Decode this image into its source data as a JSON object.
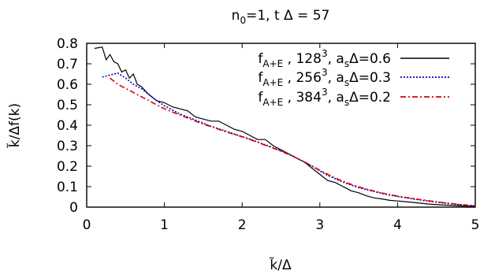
{
  "chart_data": {
    "type": "line",
    "title": "n0=1, t Δ = 57",
    "xlabel": "k̃/Δ",
    "ylabel": "k̃/Δf(k)",
    "xlim": [
      0,
      5
    ],
    "ylim": [
      0,
      0.8
    ],
    "xticks": [
      0,
      1,
      2,
      3,
      4,
      5
    ],
    "yticks": [
      0,
      0.1,
      0.2,
      0.3,
      0.4,
      0.5,
      0.6,
      0.7,
      0.8
    ],
    "xtick_labels": [
      "0",
      "1",
      "2",
      "3",
      "4",
      "5"
    ],
    "ytick_labels": [
      "0",
      "0.1",
      "0.2",
      "0.3",
      "0.4",
      "0.5",
      "0.6",
      "0.7",
      "0.8"
    ],
    "grid": false,
    "legend_position": "top-right",
    "series": [
      {
        "name": "f_A+E , 128^3, a_sΔ=0.6",
        "color": "#000000",
        "dash": "solid",
        "x": [
          0.1,
          0.2,
          0.25,
          0.3,
          0.35,
          0.4,
          0.45,
          0.5,
          0.55,
          0.6,
          0.65,
          0.7,
          0.75,
          0.8,
          0.9,
          1.0,
          1.1,
          1.2,
          1.3,
          1.4,
          1.5,
          1.6,
          1.7,
          1.8,
          1.9,
          2.0,
          2.1,
          2.2,
          2.3,
          2.4,
          2.5,
          2.6,
          2.7,
          2.8,
          2.9,
          3.0,
          3.1,
          3.2,
          3.3,
          3.4,
          3.5,
          3.6,
          3.7,
          3.8,
          3.9,
          4.0,
          4.2,
          4.4,
          4.6,
          4.8,
          5.0
        ],
        "y": [
          0.775,
          0.782,
          0.72,
          0.745,
          0.71,
          0.7,
          0.66,
          0.67,
          0.63,
          0.65,
          0.6,
          0.59,
          0.57,
          0.55,
          0.52,
          0.51,
          0.49,
          0.48,
          0.47,
          0.44,
          0.43,
          0.42,
          0.42,
          0.4,
          0.38,
          0.37,
          0.35,
          0.33,
          0.33,
          0.3,
          0.28,
          0.26,
          0.24,
          0.22,
          0.19,
          0.16,
          0.13,
          0.12,
          0.1,
          0.08,
          0.07,
          0.055,
          0.045,
          0.04,
          0.033,
          0.03,
          0.023,
          0.015,
          0.01,
          0.006,
          0.003
        ]
      },
      {
        "name": "f_A+E , 256^3, a_sΔ=0.3",
        "color": "#0000cc",
        "dash": "dotted",
        "x": [
          0.2,
          0.3,
          0.4,
          0.5,
          0.6,
          0.7,
          0.8,
          0.9,
          1.0,
          1.1,
          1.2,
          1.3,
          1.4,
          1.5,
          1.6,
          1.7,
          1.8,
          1.9,
          2.0,
          2.1,
          2.2,
          2.3,
          2.4,
          2.5,
          2.6,
          2.7,
          2.8,
          2.9,
          3.0,
          3.1,
          3.2,
          3.3,
          3.4,
          3.5,
          3.6,
          3.7,
          3.8,
          3.9,
          4.0,
          4.2,
          4.4,
          4.6,
          4.8,
          5.0
        ],
        "y": [
          0.635,
          0.645,
          0.655,
          0.63,
          0.6,
          0.58,
          0.55,
          0.52,
          0.495,
          0.475,
          0.455,
          0.44,
          0.425,
          0.41,
          0.395,
          0.382,
          0.37,
          0.357,
          0.345,
          0.332,
          0.318,
          0.304,
          0.29,
          0.275,
          0.258,
          0.24,
          0.22,
          0.2,
          0.177,
          0.155,
          0.138,
          0.122,
          0.108,
          0.095,
          0.085,
          0.076,
          0.067,
          0.059,
          0.052,
          0.04,
          0.029,
          0.02,
          0.012,
          0.006
        ]
      },
      {
        "name": "f_A+E , 384^3, a_sΔ=0.2",
        "color": "#dd0000",
        "dash": "dashdot",
        "x": [
          0.3,
          0.4,
          0.5,
          0.6,
          0.7,
          0.8,
          0.9,
          1.0,
          1.1,
          1.2,
          1.3,
          1.4,
          1.5,
          1.6,
          1.7,
          1.8,
          1.9,
          2.0,
          2.1,
          2.2,
          2.3,
          2.4,
          2.5,
          2.6,
          2.7,
          2.8,
          2.9,
          3.0,
          3.1,
          3.2,
          3.3,
          3.4,
          3.5,
          3.6,
          3.7,
          3.8,
          3.9,
          4.0,
          4.2,
          4.4,
          4.6,
          4.8,
          5.0
        ],
        "y": [
          0.63,
          0.6,
          0.58,
          0.56,
          0.54,
          0.52,
          0.5,
          0.48,
          0.465,
          0.45,
          0.435,
          0.42,
          0.405,
          0.393,
          0.38,
          0.367,
          0.355,
          0.343,
          0.33,
          0.316,
          0.302,
          0.288,
          0.273,
          0.257,
          0.24,
          0.221,
          0.201,
          0.18,
          0.16,
          0.142,
          0.126,
          0.112,
          0.099,
          0.088,
          0.078,
          0.069,
          0.061,
          0.054,
          0.042,
          0.031,
          0.021,
          0.013,
          0.007
        ]
      }
    ]
  },
  "legend": [
    {
      "base": "f",
      "sub": "A+E",
      "mid": " , 128",
      "sup": "3",
      "tail1": ", a",
      "sub2": "s",
      "tail2": "Δ=0.6"
    },
    {
      "base": "f",
      "sub": "A+E",
      "mid": " , 256",
      "sup": "3",
      "tail1": ", a",
      "sub2": "s",
      "tail2": "Δ=0.3"
    },
    {
      "base": "f",
      "sub": "A+E",
      "mid": " , 384",
      "sup": "3",
      "tail1": ", a",
      "sub2": "s",
      "tail2": "Δ=0.2"
    }
  ],
  "title_parts": {
    "a": "n",
    "sub": "0",
    "b": "=1, t Δ = 57"
  }
}
